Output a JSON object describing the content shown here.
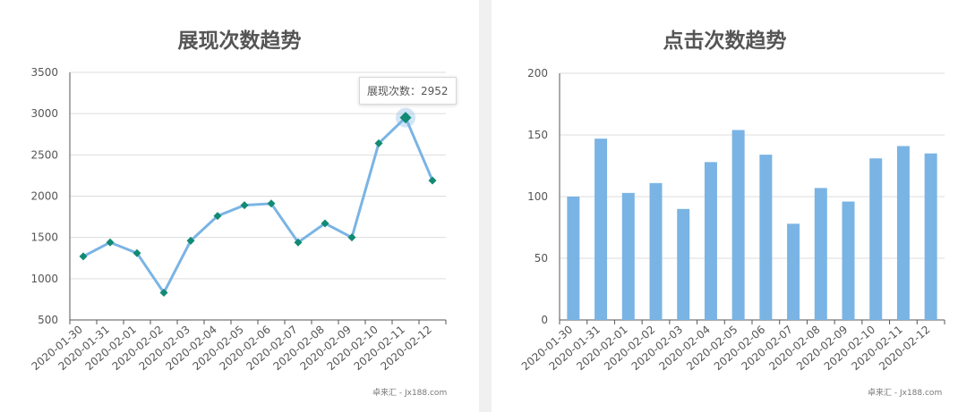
{
  "colors": {
    "line": "#7ab4e4",
    "marker": "#128a74",
    "bar": "#7ab4e4",
    "grid": "#dddddd",
    "axis": "#555555",
    "tick_text": "#555555"
  },
  "credit": "卓来汇 - Jx188.com",
  "chart_data": [
    {
      "type": "line",
      "title": "展现次数趋势",
      "categories": [
        "2020-01-30",
        "2020-01-31",
        "2020-02-01",
        "2020-02-02",
        "2020-02-03",
        "2020-02-04",
        "2020-02-05",
        "2020-02-06",
        "2020-02-07",
        "2020-02-08",
        "2020-02-09",
        "2020-02-10",
        "2020-02-11",
        "2020-02-12"
      ],
      "series": [
        {
          "name": "展现次数",
          "values": [
            1270,
            1440,
            1310,
            830,
            1460,
            1760,
            1890,
            1910,
            1440,
            1670,
            1500,
            2640,
            2952,
            2190
          ]
        }
      ],
      "yticks": [
        500,
        1000,
        1500,
        2000,
        2500,
        3000,
        3500
      ],
      "ylim": [
        500,
        3500
      ],
      "grid": true,
      "tooltip": {
        "label": "展现次数：2952",
        "index": 12
      }
    },
    {
      "type": "bar",
      "title": "点击次数趋势",
      "categories": [
        "2020-01-30",
        "2020-01-31",
        "2020-02-01",
        "2020-02-02",
        "2020-02-03",
        "2020-02-04",
        "2020-02-05",
        "2020-02-06",
        "2020-02-07",
        "2020-02-08",
        "2020-02-09",
        "2020-02-10",
        "2020-02-11",
        "2020-02-12"
      ],
      "series": [
        {
          "values": [
            100,
            147,
            103,
            111,
            90,
            128,
            154,
            134,
            78,
            107,
            96,
            131,
            141,
            135
          ]
        }
      ],
      "yticks": [
        0,
        50,
        100,
        150,
        200
      ],
      "ylim": [
        0,
        200
      ],
      "grid": true
    }
  ]
}
